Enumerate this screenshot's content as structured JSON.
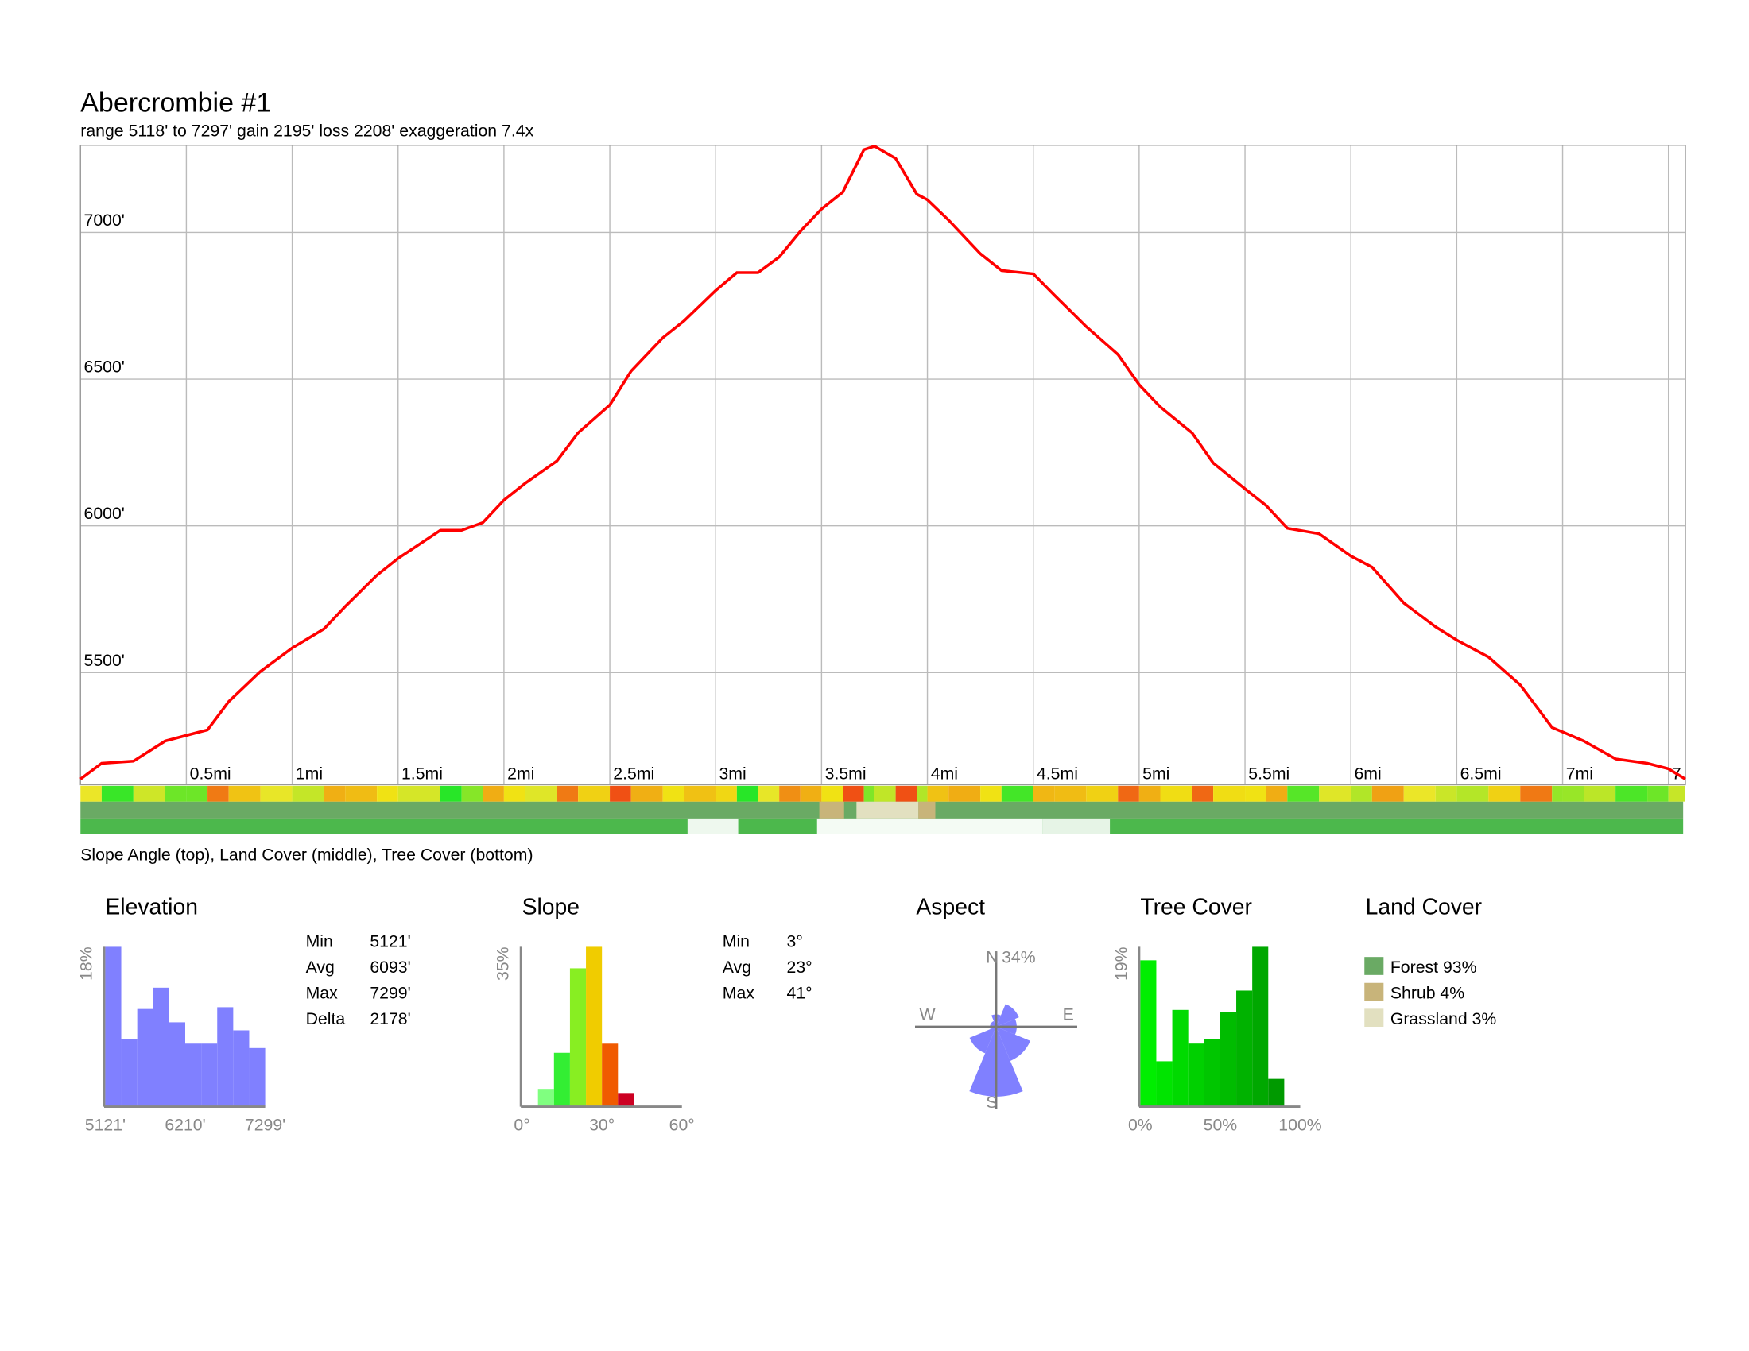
{
  "chart_data": [
    {
      "type": "line",
      "title": "Abercrombie  #1",
      "subtitle": "range 5118' to 7297'  gain 2195'  loss 2208'  exaggeration 7.4x",
      "x": [
        0,
        0.1,
        0.25,
        0.4,
        0.5,
        0.6,
        0.7,
        0.85,
        1.0,
        1.15,
        1.25,
        1.4,
        1.5,
        1.7,
        1.8,
        1.9,
        2.0,
        2.1,
        2.25,
        2.35,
        2.5,
        2.6,
        2.75,
        2.85,
        3.0,
        3.1,
        3.2,
        3.3,
        3.4,
        3.5,
        3.6,
        3.7,
        3.75,
        3.85,
        3.95,
        4.0,
        4.1,
        4.25,
        4.35,
        4.5,
        4.6,
        4.75,
        4.9,
        5.0,
        5.1,
        5.25,
        5.35,
        5.5,
        5.6,
        5.7,
        5.85,
        6.0,
        6.1,
        6.25,
        6.4,
        6.5,
        6.65,
        6.8,
        6.95,
        7.0,
        7.1,
        7.25,
        7.4,
        7.5,
        7.58
      ],
      "values": [
        5137,
        5191,
        5198,
        5267,
        5286,
        5305,
        5401,
        5504,
        5584,
        5649,
        5725,
        5832,
        5889,
        5985,
        5985,
        6011,
        6088,
        6145,
        6221,
        6317,
        6412,
        6527,
        6641,
        6698,
        6802,
        6863,
        6863,
        6916,
        7004,
        7080,
        7137,
        7282,
        7294,
        7252,
        7130,
        7111,
        7042,
        6927,
        6870,
        6859,
        6786,
        6679,
        6584,
        6481,
        6405,
        6317,
        6214,
        6126,
        6069,
        5992,
        5973,
        5897,
        5859,
        5737,
        5656,
        5611,
        5553,
        5458,
        5313,
        5298,
        5267,
        5206,
        5191,
        5172,
        5137
      ],
      "color": "#ff0000",
      "xlim": [
        0,
        7.58
      ],
      "ylim": [
        5118,
        7297
      ],
      "xticks": [
        {
          "value": 0.5,
          "label": "0.5mi"
        },
        {
          "value": 1,
          "label": "1mi"
        },
        {
          "value": 1.5,
          "label": "1.5mi"
        },
        {
          "value": 2,
          "label": "2mi"
        },
        {
          "value": 2.5,
          "label": "2.5mi"
        },
        {
          "value": 3,
          "label": "3mi"
        },
        {
          "value": 3.5,
          "label": "3.5mi"
        },
        {
          "value": 4,
          "label": "4mi"
        },
        {
          "value": 4.5,
          "label": "4.5mi"
        },
        {
          "value": 5,
          "label": "5mi"
        },
        {
          "value": 5.5,
          "label": "5.5mi"
        },
        {
          "value": 6,
          "label": "6mi"
        },
        {
          "value": 6.5,
          "label": "6.5mi"
        },
        {
          "value": 7,
          "label": "7mi"
        },
        {
          "value": 7.5,
          "label": "7."
        }
      ],
      "yticks": [
        {
          "value": 5500,
          "label": "5500'"
        },
        {
          "value": 6000,
          "label": "6000'"
        },
        {
          "value": 6500,
          "label": "6500'"
        },
        {
          "value": 7000,
          "label": "7000'"
        }
      ],
      "grid": true,
      "caption": "Slope Angle (top), Land Cover (middle), Tree Cover (bottom)"
    },
    {
      "type": "histogram",
      "title": "Elevation",
      "bins": [
        5121,
        5338.8,
        5556.6,
        5774.4,
        5992.2,
        6210,
        6427.8,
        6645.6,
        6863.4,
        7081.2,
        7299
      ],
      "values": [
        18,
        7.6,
        11,
        13.4,
        9.5,
        7.1,
        7.1,
        11.2,
        8.6,
        6.6
      ],
      "color": "#8080ff",
      "xlim": [
        5121,
        7299
      ],
      "ylim": [
        0,
        18
      ],
      "xticks": [
        {
          "value": 5121,
          "label": "5121'"
        },
        {
          "value": 6210,
          "label": "6210'"
        },
        {
          "value": 7299,
          "label": "7299'"
        }
      ],
      "yticks": [
        {
          "value": 18,
          "label": "18%"
        }
      ],
      "stats": [
        [
          "Min",
          "5121'"
        ],
        [
          "Avg",
          "6093'"
        ],
        [
          "Max",
          "7299'"
        ],
        [
          "Delta",
          "2178'"
        ]
      ]
    },
    {
      "type": "histogram",
      "title": "Slope",
      "bins": [
        6,
        12,
        18,
        24,
        30,
        36,
        42
      ],
      "values": [
        3.9,
        11.8,
        30.3,
        35,
        13.8,
        3.0
      ],
      "colors": [
        "#80ff80",
        "#33ee33",
        "#88ee22",
        "#f0cc00",
        "#f05a00",
        "#cc0022"
      ],
      "xlim": [
        0,
        60
      ],
      "ylim": [
        0,
        35
      ],
      "xticks": [
        {
          "value": 0,
          "label": "0°"
        },
        {
          "value": 30,
          "label": "30°"
        },
        {
          "value": 60,
          "label": "60°"
        }
      ],
      "yticks": [
        {
          "value": 35,
          "label": "35%"
        }
      ],
      "stats": [
        [
          "Min",
          "3°"
        ],
        [
          "Avg",
          "23°"
        ],
        [
          "Max",
          "41°"
        ]
      ]
    },
    {
      "type": "rose",
      "title": "Aspect",
      "angles": [
        0,
        45,
        90,
        135,
        180,
        225,
        270,
        315
      ],
      "values": [
        6,
        12,
        10,
        18,
        34,
        14,
        3,
        3
      ],
      "color": "#8080ff",
      "rlim": [
        0,
        34
      ],
      "rticks": [
        {
          "value": 34,
          "label": "34%"
        }
      ],
      "directions": [
        "N",
        "E",
        "S",
        "W"
      ]
    },
    {
      "type": "histogram",
      "title": "Tree Cover",
      "bins": [
        0,
        10,
        20,
        30,
        40,
        50,
        60,
        70,
        80,
        90
      ],
      "values": [
        17.4,
        5.4,
        11.5,
        7.5,
        8.0,
        11.2,
        13.8,
        19,
        3.3
      ],
      "colors": [
        "#00ee00",
        "#00e400",
        "#00da00",
        "#00d000",
        "#00c600",
        "#00bc00",
        "#00b200",
        "#00a800",
        "#009a00"
      ],
      "xlim": [
        0,
        100
      ],
      "ylim": [
        0,
        19
      ],
      "xticks": [
        {
          "value": 0,
          "label": "0%"
        },
        {
          "value": 50,
          "label": "50%"
        },
        {
          "value": 100,
          "label": "100%"
        }
      ],
      "yticks": [
        {
          "value": 19,
          "label": "19%"
        }
      ]
    }
  ],
  "land_cover": {
    "title": "Land Cover",
    "items": [
      {
        "label": "Forest 93%",
        "color": "#6aaa64"
      },
      {
        "label": "Shrub 4%",
        "color": "#c8b47a"
      },
      {
        "label": "Grassland 3%",
        "color": "#e2e0c0"
      }
    ]
  }
}
